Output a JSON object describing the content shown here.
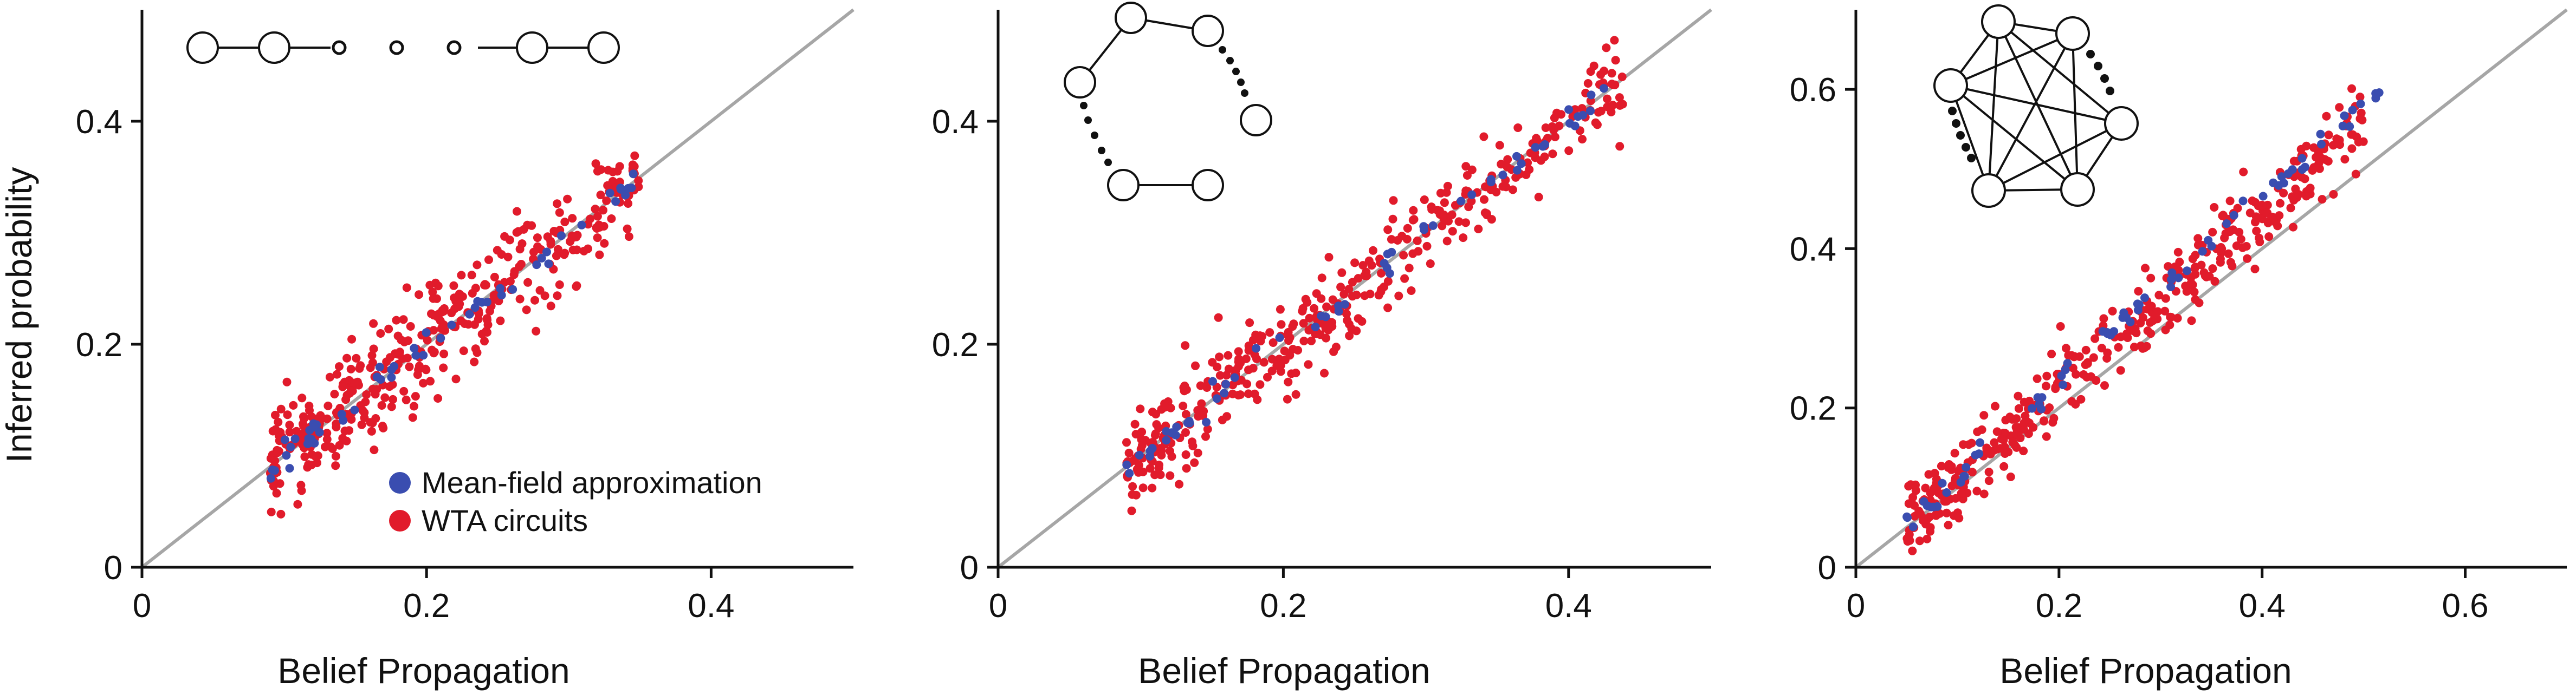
{
  "colors": {
    "mean_field": "#3a4db0",
    "wta": "#e11b2b",
    "identity_line": "#a6a6a6",
    "axis": "#111111"
  },
  "legend": {
    "mean_field_label": "Mean-field approximation",
    "wta_label": "WTA circuits"
  },
  "chart_data": [
    {
      "type": "scatter",
      "title": "",
      "inset_graph": "chain",
      "xlabel": "Belief Propagation",
      "ylabel": "Inferred probability",
      "xlim": [
        0,
        0.5
      ],
      "ylim": [
        0,
        0.5
      ],
      "xticks": [
        "0",
        "0.2",
        "0.4"
      ],
      "yticks": [
        "0",
        "0.2",
        "0.4"
      ],
      "xtick_values": [
        0,
        0.2,
        0.4
      ],
      "ytick_values": [
        0,
        0.2,
        0.4
      ],
      "identity_line": true,
      "grid": false,
      "legend_position": "bottom-right",
      "series": [
        {
          "name": "Mean-field approximation",
          "x_range": [
            0.09,
            0.35
          ],
          "slope": 1.0,
          "spread": 0.006,
          "n": 55
        },
        {
          "name": "WTA circuits",
          "x_range": [
            0.09,
            0.35
          ],
          "slope": 1.0,
          "spread": 0.025,
          "n": 400
        }
      ]
    },
    {
      "type": "scatter",
      "title": "",
      "inset_graph": "ring",
      "xlabel": "Belief Propagation",
      "ylabel": "",
      "xlim": [
        0,
        0.5
      ],
      "ylim": [
        0,
        0.5
      ],
      "xticks": [
        "0",
        "0.2",
        "0.4"
      ],
      "yticks": [
        "0",
        "0.2",
        "0.4"
      ],
      "xtick_values": [
        0,
        0.2,
        0.4
      ],
      "ytick_values": [
        0,
        0.2,
        0.4
      ],
      "identity_line": true,
      "grid": false,
      "series": [
        {
          "name": "Mean-field approximation",
          "x_range": [
            0.09,
            0.44
          ],
          "slope": 1.0,
          "spread": 0.006,
          "n": 55
        },
        {
          "name": "WTA circuits",
          "x_range": [
            0.09,
            0.44
          ],
          "slope": 1.0,
          "spread": 0.02,
          "n": 400
        }
      ]
    },
    {
      "type": "scatter",
      "title": "",
      "inset_graph": "complete",
      "xlabel": "Belief Propagation",
      "ylabel": "",
      "xlim": [
        0,
        0.7
      ],
      "ylim": [
        0,
        0.7
      ],
      "xticks": [
        "0",
        "0.2",
        "0.4",
        "0.6"
      ],
      "yticks": [
        "0",
        "0.2",
        "0.4",
        "0.6"
      ],
      "xtick_values": [
        0,
        0.2,
        0.4,
        0.6
      ],
      "ytick_values": [
        0,
        0.2,
        0.4,
        0.6
      ],
      "identity_line": true,
      "grid": false,
      "series": [
        {
          "name": "Mean-field approximation",
          "x_range": [
            0.05,
            0.52
          ],
          "slope": 1.17,
          "spread": 0.01,
          "n": 70
        },
        {
          "name": "WTA circuits",
          "x_range": [
            0.05,
            0.5
          ],
          "slope": 1.12,
          "spread": 0.025,
          "n": 400
        }
      ]
    }
  ]
}
